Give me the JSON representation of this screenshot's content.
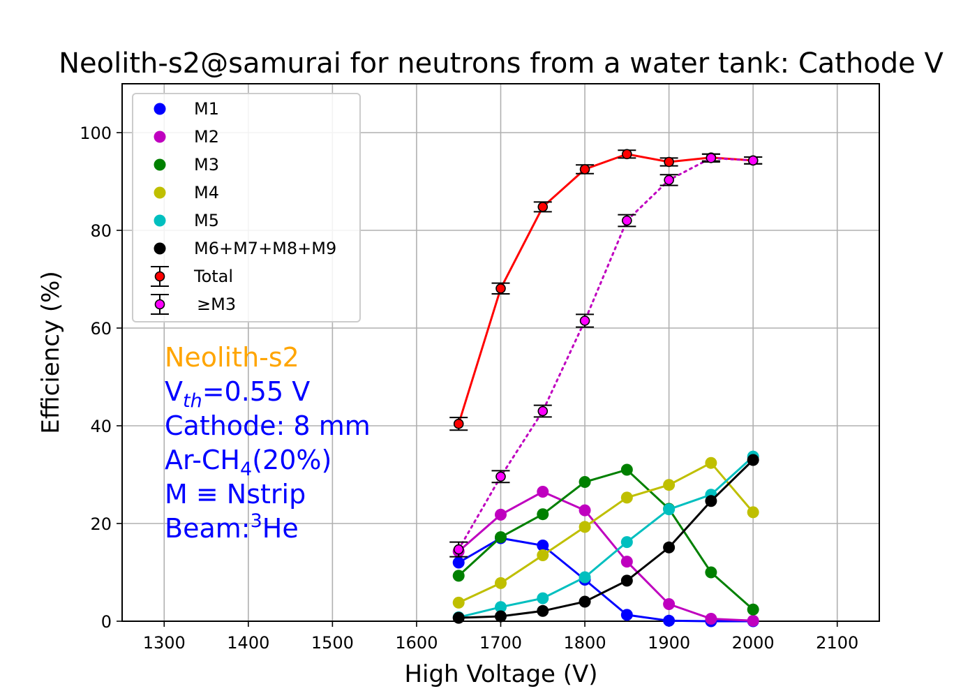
{
  "colors": {
    "M1": "#0000ff",
    "M2": "#bf00bf",
    "M3": "#008000",
    "M4": "#bfbf00",
    "M5": "#00bfbf",
    "M6": "#000000",
    "total_line": "#ff0000",
    "total_marker": "#ff0000",
    "ge3_line": "#bf00bf",
    "ge3_marker": "#ff00ff",
    "note_orange": "#ffa500",
    "note_blue": "#0000ff"
  },
  "chart_data": {
    "type": "line",
    "title": "Neolith-s2@samurai for neutrons from a water tank: Cathode V",
    "xlabel": "High Voltage (V)",
    "ylabel": "Efficiency (%)",
    "xlim": [
      1250,
      2150
    ],
    "ylim": [
      0,
      110
    ],
    "xticks": [
      1300,
      1400,
      1500,
      1600,
      1700,
      1800,
      1900,
      2000,
      2100
    ],
    "yticks": [
      0,
      20,
      40,
      60,
      80,
      100
    ],
    "grid": true,
    "legend_position": "top-left",
    "x": [
      1650,
      1700,
      1750,
      1800,
      1850,
      1900,
      1950,
      2000
    ],
    "series": [
      {
        "name": "M1",
        "values": [
          12.0,
          17.0,
          15.5,
          8.5,
          1.3,
          0.1,
          0.0,
          0.0
        ]
      },
      {
        "name": "M2",
        "values": [
          14.3,
          21.8,
          26.5,
          22.7,
          12.2,
          3.5,
          0.5,
          0.1
        ]
      },
      {
        "name": "M3",
        "values": [
          9.3,
          17.2,
          21.9,
          28.5,
          31.0,
          23.0,
          10.0,
          2.4
        ]
      },
      {
        "name": "M4",
        "values": [
          3.8,
          7.8,
          13.5,
          19.3,
          25.3,
          27.9,
          32.4,
          22.3
        ]
      },
      {
        "name": "M5",
        "values": [
          0.8,
          2.9,
          4.7,
          9.0,
          16.2,
          22.9,
          25.9,
          33.7
        ]
      },
      {
        "name": "M6+M7+M8+M9",
        "values": [
          0.7,
          1.0,
          2.1,
          4.0,
          8.3,
          15.1,
          24.6,
          33.0
        ]
      },
      {
        "name": "Total",
        "values": [
          40.4,
          68.1,
          84.8,
          92.5,
          95.6,
          94.0,
          94.9,
          94.3
        ],
        "errors": [
          1.3,
          1.1,
          1.0,
          0.9,
          0.8,
          0.8,
          0.7,
          0.7
        ]
      },
      {
        "name": "≥M3",
        "values": [
          14.7,
          29.6,
          43.0,
          61.5,
          82.0,
          90.3,
          94.8,
          94.3
        ],
        "errors": [
          1.5,
          1.2,
          1.2,
          1.3,
          1.2,
          1.1,
          0.8,
          0.7
        ]
      }
    ],
    "annotations": [
      {
        "text": "Neolith-s2",
        "color": "orange"
      },
      {
        "text": "V_th=0.55 V",
        "color": "blue"
      },
      {
        "text": "Cathode: 8 mm",
        "color": "blue"
      },
      {
        "text": "Ar-CH4(20%)",
        "color": "blue"
      },
      {
        "text": "M ≡ Nstrip",
        "color": "blue"
      },
      {
        "text": "Beam:3He",
        "color": "blue"
      }
    ]
  }
}
